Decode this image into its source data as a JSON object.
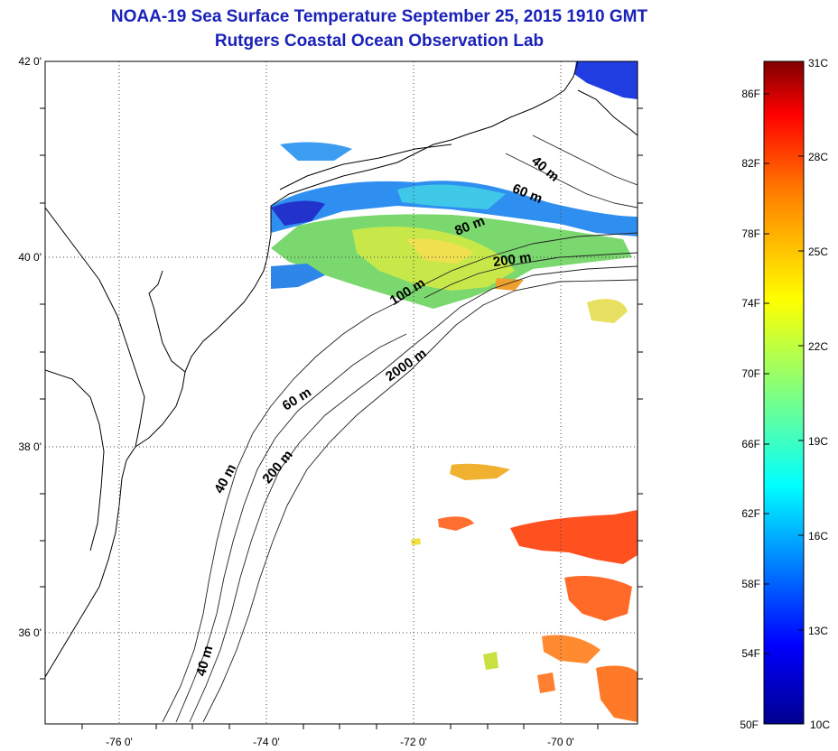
{
  "header": {
    "title": "NOAA-19 Sea Surface Temperature September 25, 2015 1910 GMT",
    "subtitle": "Rutgers Coastal Ocean Observation Lab"
  },
  "map": {
    "lat_labels": [
      "42 0'",
      "40 0'",
      "38 0'",
      "36 0'"
    ],
    "lon_labels": [
      "-76 0'",
      "-74 0'",
      "-72 0'",
      "-70 0'"
    ],
    "isobath_labels": [
      "40 m",
      "60 m",
      "80 m",
      "200 m",
      "100 m",
      "2000 m",
      "60 m",
      "40 m",
      "200 m",
      "40 m"
    ]
  },
  "colorbar": {
    "fahrenheit": [
      "86F",
      "82F",
      "78F",
      "74F",
      "70F",
      "66F",
      "62F",
      "58F",
      "54F",
      "50F"
    ],
    "celsius": [
      "31C",
      "28C",
      "25C",
      "22C",
      "19C",
      "16C",
      "13C",
      "10C"
    ],
    "colors": [
      "#00008f",
      "#0000ff",
      "#0080ff",
      "#00ffff",
      "#80ff80",
      "#ffff00",
      "#ff8000",
      "#ff0000",
      "#800000"
    ]
  }
}
